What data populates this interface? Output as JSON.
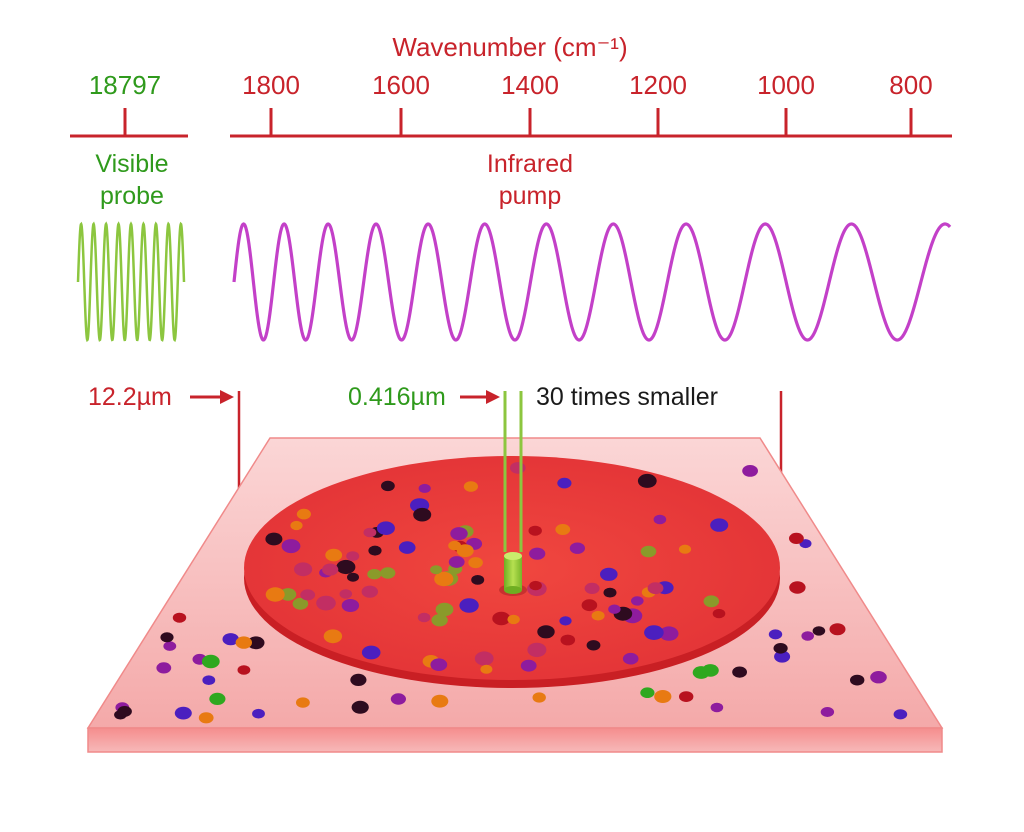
{
  "axis": {
    "title": "Wavenumber (cm⁻¹)",
    "probe_tick": "18797",
    "ticks": [
      "1800",
      "1600",
      "1400",
      "1200",
      "1000",
      "800"
    ]
  },
  "labels": {
    "probe_line1": "Visible",
    "probe_line2": "probe",
    "pump_line1": "Infrared",
    "pump_line2": "pump",
    "ir_spot_size": "12.2µm",
    "vis_spot_size": "0.416µm",
    "comparison": "30 times smaller"
  },
  "colors": {
    "axis_red": "#c8232b",
    "probe_green": "#8cc63f",
    "pump_magenta": "#c340c8",
    "sample_red": "#e8393c",
    "slide_pink": "#f6b8b8"
  }
}
